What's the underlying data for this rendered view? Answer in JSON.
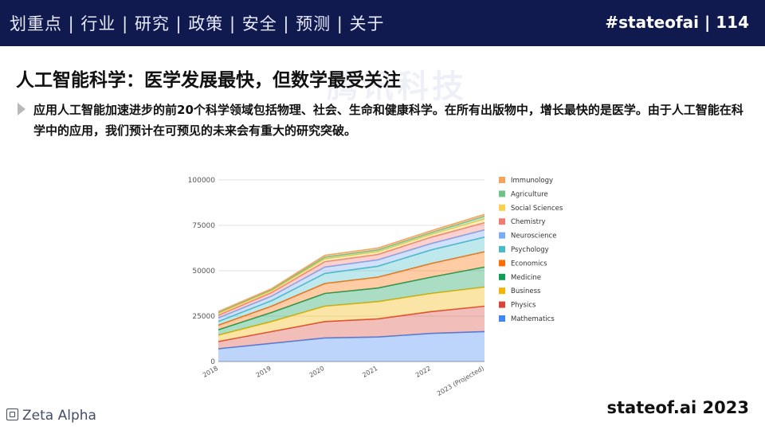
{
  "header": {
    "nav": "划重点 | 行业 | 研究 | 政策 | 安全 | 预测 | 关于",
    "tag": "#stateofai | 114"
  },
  "title": "人工智能科学：医学发展最快，但数学最受关注",
  "watermark": "腾讯科技",
  "bullet": "应用人工智能加速进步的前20个科学领域包括物理、社会、生命和健康科学。在所有出版物中，增长最快的是医学。由于人工智能在科学中的应用，我们预计在可预见的未来会有重大的研究突破。",
  "footer": {
    "brand": "Zeta Alpha",
    "site": "stateof.ai 2023"
  },
  "chart_data": {
    "type": "area",
    "stacked": true,
    "categories": [
      "2018",
      "2019",
      "2020",
      "2021",
      "2022",
      "2023 (Projected)"
    ],
    "ylim": [
      0,
      100000
    ],
    "yticks": [
      0,
      25000,
      50000,
      75000,
      100000
    ],
    "grid": true,
    "legend_position": "right",
    "series": [
      {
        "name": "Mathematics",
        "color": "#4285f4",
        "values": [
          7000,
          10000,
          13000,
          13500,
          15500,
          16500
        ]
      },
      {
        "name": "Physics",
        "color": "#db4437",
        "values": [
          4000,
          6500,
          9000,
          10000,
          12000,
          14000
        ]
      },
      {
        "name": "Business",
        "color": "#f4b400",
        "values": [
          3500,
          5500,
          8500,
          9500,
          10000,
          10500
        ]
      },
      {
        "name": "Medicine",
        "color": "#0f9d58",
        "values": [
          3000,
          5000,
          7000,
          7500,
          9000,
          11000
        ]
      },
      {
        "name": "Economics",
        "color": "#ff6d00",
        "values": [
          2500,
          3500,
          5500,
          6000,
          7500,
          8500
        ]
      },
      {
        "name": "Psychology",
        "color": "#46bdc6",
        "values": [
          2000,
          3000,
          5500,
          6000,
          7500,
          8000
        ]
      },
      {
        "name": "Neuroscience",
        "color": "#7baaf7",
        "values": [
          2000,
          2500,
          3500,
          3500,
          3500,
          4000
        ]
      },
      {
        "name": "Chemistry",
        "color": "#f07b72",
        "values": [
          1500,
          2000,
          3000,
          3000,
          3500,
          4000
        ]
      },
      {
        "name": "Social Sciences",
        "color": "#fcd04f",
        "values": [
          1000,
          1000,
          1500,
          1500,
          1500,
          2000
        ]
      },
      {
        "name": "Agriculture",
        "color": "#71c287",
        "values": [
          500,
          600,
          1000,
          1000,
          1000,
          1500
        ]
      },
      {
        "name": "Immunology",
        "color": "#f6a35c",
        "values": [
          500,
          500,
          1000,
          1000,
          1000,
          1000
        ]
      }
    ]
  }
}
